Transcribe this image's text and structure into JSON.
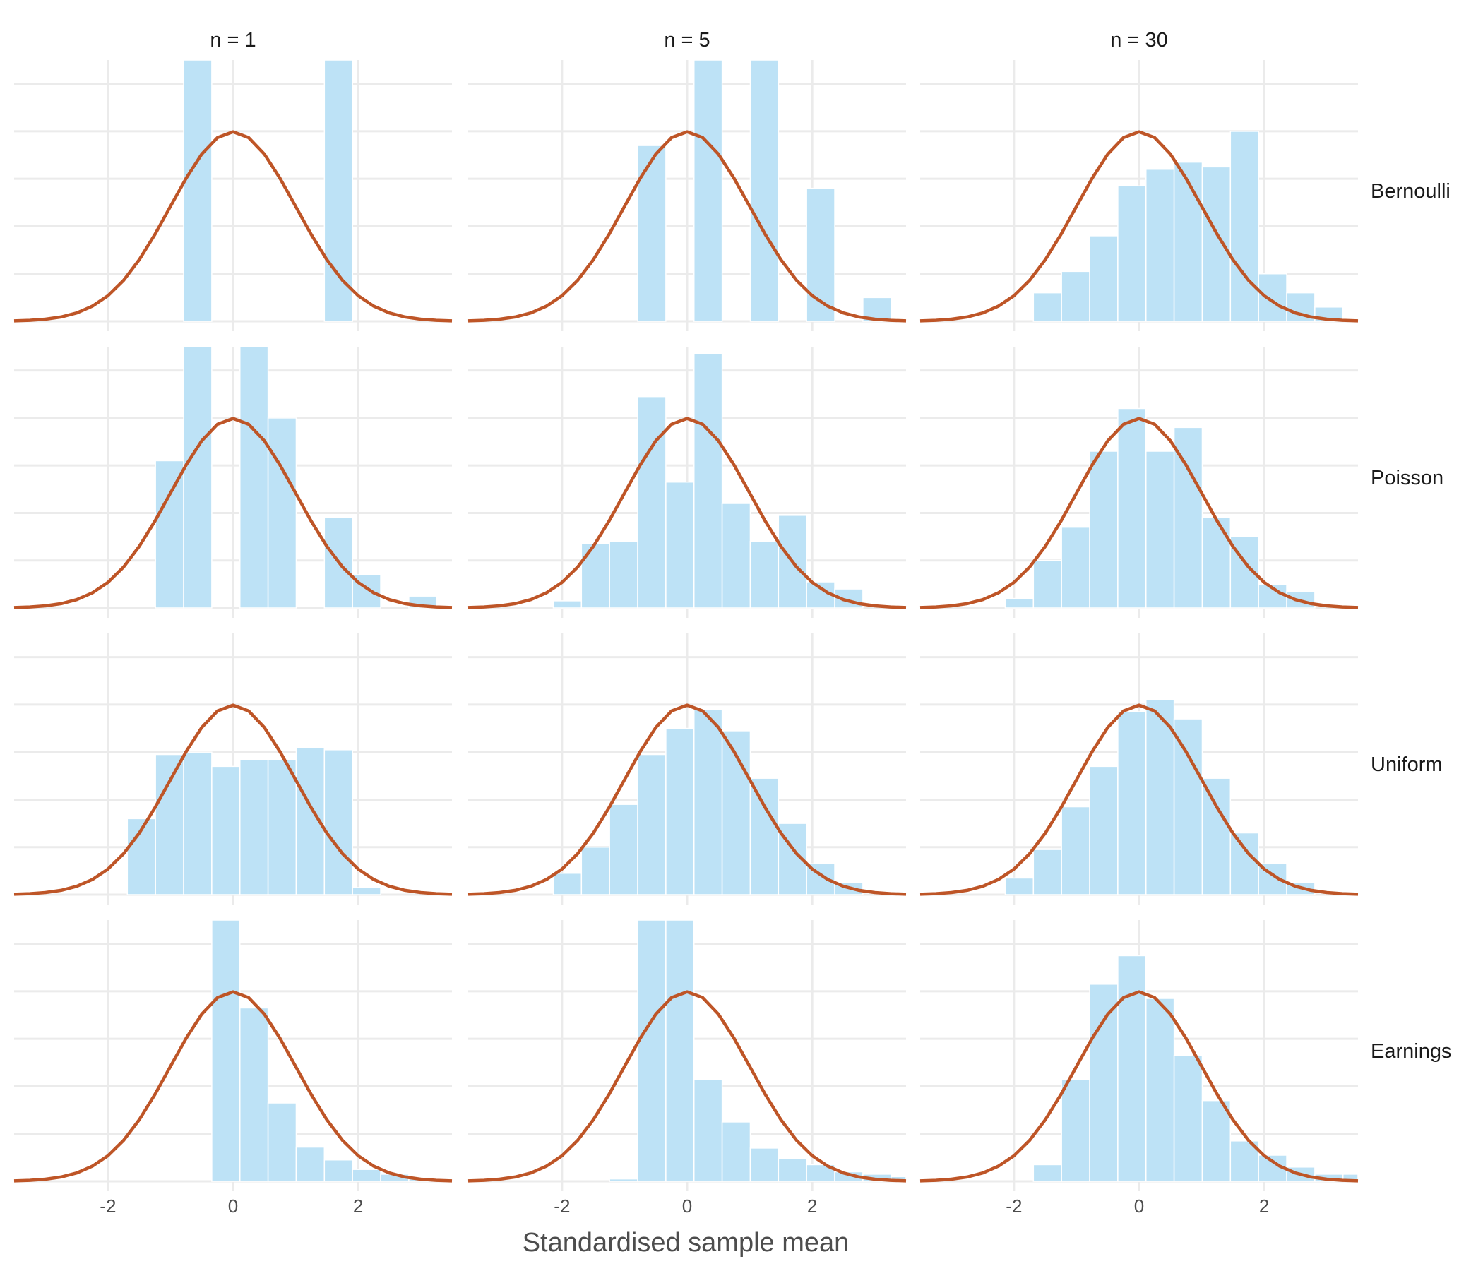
{
  "chart_data": {
    "type": "histogram-facet",
    "xlabel": "Standardised sample mean",
    "xlim": [
      -3.5,
      3.5
    ],
    "x_ticks": [
      "-2",
      "0",
      "2"
    ],
    "x_tick_values": [
      -2,
      0,
      2
    ],
    "bin_width": 0.45,
    "bin_starts": [
      -3.04,
      -2.59,
      -2.14,
      -1.69,
      -1.24,
      -0.79,
      -0.34,
      0.11,
      0.56,
      1.01,
      1.46,
      1.91,
      2.36,
      2.81,
      3.26
    ],
    "columns": [
      "n = 1",
      "n = 5",
      "n = 30"
    ],
    "rows": [
      "Bernoulli",
      "Poisson",
      "Uniform",
      "Earnings"
    ],
    "curve": "standard normal density",
    "colors": {
      "bar": "#bde2f6",
      "curve": "#be5527",
      "grid": "#ebebeb"
    },
    "grid": true,
    "facets": [
      {
        "row": "Bernoulli",
        "col": "n = 1",
        "density": [
          0,
          0,
          0,
          0,
          0,
          0.55,
          0,
          0,
          0,
          0,
          0.55,
          0,
          0,
          0,
          0
        ]
      },
      {
        "row": "Bernoulli",
        "col": "n = 5",
        "density": [
          0,
          0,
          0,
          0,
          0,
          0.37,
          0,
          0.55,
          0,
          0.55,
          0,
          0.28,
          0,
          0.05,
          0
        ]
      },
      {
        "row": "Bernoulli",
        "col": "n = 30",
        "density": [
          0,
          0,
          0,
          0.06,
          0.105,
          0.18,
          0.285,
          0.32,
          0.335,
          0.325,
          0.4,
          0.1,
          0.06,
          0.03,
          0
        ]
      },
      {
        "row": "Poisson",
        "col": "n = 1",
        "density": [
          0,
          0,
          0,
          0,
          0.31,
          0.55,
          0,
          0.55,
          0.4,
          0,
          0.19,
          0.07,
          0,
          0.025,
          0
        ]
      },
      {
        "row": "Poisson",
        "col": "n = 5",
        "density": [
          0,
          0,
          0.015,
          0.135,
          0.14,
          0.445,
          0.265,
          0.535,
          0.22,
          0.14,
          0.195,
          0.055,
          0.04,
          0,
          0
        ]
      },
      {
        "row": "Poisson",
        "col": "n = 30",
        "density": [
          0,
          0,
          0.02,
          0.1,
          0.17,
          0.33,
          0.42,
          0.33,
          0.38,
          0.19,
          0.15,
          0.05,
          0.035,
          0,
          0
        ]
      },
      {
        "row": "Uniform",
        "col": "n = 1",
        "density": [
          0,
          0,
          0,
          0.16,
          0.295,
          0.3,
          0.27,
          0.285,
          0.285,
          0.31,
          0.305,
          0.015,
          0,
          0,
          0
        ]
      },
      {
        "row": "Uniform",
        "col": "n = 5",
        "density": [
          0,
          0,
          0.045,
          0.1,
          0.19,
          0.295,
          0.35,
          0.39,
          0.345,
          0.245,
          0.15,
          0.065,
          0.025,
          0,
          0
        ]
      },
      {
        "row": "Uniform",
        "col": "n = 30",
        "density": [
          0,
          0,
          0.035,
          0.095,
          0.185,
          0.27,
          0.385,
          0.41,
          0.37,
          0.245,
          0.13,
          0.065,
          0.025,
          0,
          0
        ]
      },
      {
        "row": "Earnings",
        "col": "n = 1",
        "density": [
          0,
          0,
          0,
          0,
          0,
          0,
          0.55,
          0.365,
          0.165,
          0.072,
          0.045,
          0.025,
          0.015,
          0.005,
          0
        ]
      },
      {
        "row": "Earnings",
        "col": "n = 5",
        "density": [
          0,
          0,
          0,
          0,
          0.005,
          0.55,
          0.55,
          0.215,
          0.125,
          0.07,
          0.048,
          0.035,
          0.02,
          0.015,
          0.01
        ]
      },
      {
        "row": "Earnings",
        "col": "n = 30",
        "density": [
          0,
          0,
          0,
          0.035,
          0.215,
          0.415,
          0.475,
          0.385,
          0.265,
          0.17,
          0.085,
          0.055,
          0.03,
          0.015,
          0.015
        ]
      }
    ]
  }
}
